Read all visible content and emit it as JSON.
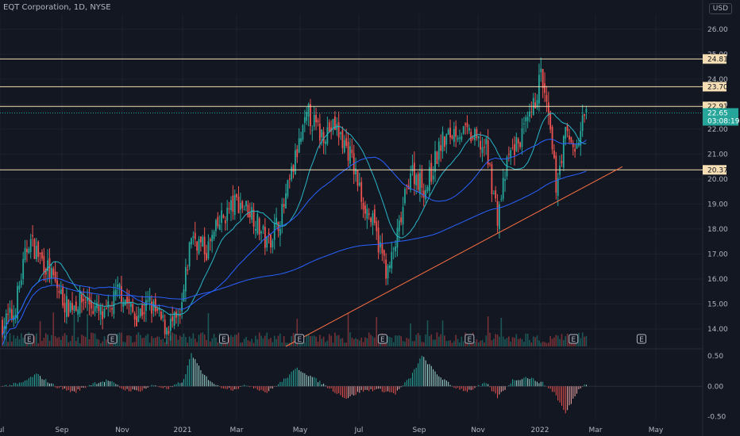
{
  "header": {
    "title": "EQT Corporation, 1D, NYSE",
    "currency": "USD"
  },
  "chart_data": {
    "type": "candlestick",
    "ylim": [
      13.3,
      26.6
    ],
    "price_ticks": [
      "14.00",
      "15.00",
      "16.00",
      "17.00",
      "18.00",
      "19.00",
      "20.00",
      "21.00",
      "22.00",
      "23.00",
      "24.00",
      "25.00",
      "26.00"
    ],
    "x_labels": [
      "Jul",
      "Sep",
      "Nov",
      "2021",
      "Mar",
      "May",
      "Jul",
      "Sep",
      "Nov",
      "2022",
      "Mar",
      "May"
    ],
    "horizontal_levels": [
      {
        "value": 24.81,
        "label": "24.81"
      },
      {
        "value": 23.7,
        "label": "23.70"
      },
      {
        "value": 22.91,
        "label": "22.91"
      },
      {
        "value": 20.37,
        "label": "20.37"
      }
    ],
    "last_price": {
      "value": 22.65,
      "label": "22.65",
      "countdown": "03:08:19"
    },
    "trendline": {
      "start": {
        "date": "2021-05",
        "price": 13.3
      },
      "end": {
        "date": "2022-03",
        "price": 20.5
      }
    },
    "close_anchors": [
      [
        0,
        14.2
      ],
      [
        6,
        14.6
      ],
      [
        14,
        17.6
      ],
      [
        24,
        16.4
      ],
      [
        34,
        14.9
      ],
      [
        44,
        15.2
      ],
      [
        54,
        14.4
      ],
      [
        62,
        15.6
      ],
      [
        70,
        14.5
      ],
      [
        78,
        15.0
      ],
      [
        86,
        14.1
      ],
      [
        94,
        14.3
      ],
      [
        100,
        17.8
      ],
      [
        108,
        17.1
      ],
      [
        116,
        18.4
      ],
      [
        124,
        19.1
      ],
      [
        132,
        18.7
      ],
      [
        140,
        17.4
      ],
      [
        148,
        18.6
      ],
      [
        156,
        21.1
      ],
      [
        162,
        22.6
      ],
      [
        168,
        21.8
      ],
      [
        176,
        22.1
      ],
      [
        184,
        21.0
      ],
      [
        190,
        19.3
      ],
      [
        196,
        18.2
      ],
      [
        204,
        16.2
      ],
      [
        210,
        18.0
      ],
      [
        216,
        20.4
      ],
      [
        224,
        19.6
      ],
      [
        232,
        21.4
      ],
      [
        240,
        22.0
      ],
      [
        248,
        21.7
      ],
      [
        256,
        21.2
      ],
      [
        262,
        18.5
      ],
      [
        268,
        20.9
      ],
      [
        274,
        21.6
      ],
      [
        280,
        22.5
      ],
      [
        285,
        24.2
      ],
      [
        289,
        22.3
      ],
      [
        293,
        19.8
      ],
      [
        298,
        21.8
      ],
      [
        304,
        21.2
      ],
      [
        308,
        22.6
      ]
    ],
    "oscillator": {
      "ticks": [
        "0.50",
        "0.00",
        "-0.50"
      ],
      "ylim": [
        -0.56,
        0.58
      ],
      "anchors": [
        [
          0,
          0.0
        ],
        [
          10,
          0.05
        ],
        [
          18,
          0.2
        ],
        [
          28,
          0.0
        ],
        [
          38,
          -0.1
        ],
        [
          48,
          0.05
        ],
        [
          56,
          0.1
        ],
        [
          64,
          -0.05
        ],
        [
          72,
          -0.08
        ],
        [
          80,
          0.02
        ],
        [
          88,
          -0.05
        ],
        [
          96,
          0.1
        ],
        [
          100,
          0.55
        ],
        [
          106,
          0.2
        ],
        [
          114,
          0.0
        ],
        [
          122,
          -0.05
        ],
        [
          130,
          0.02
        ],
        [
          140,
          -0.1
        ],
        [
          148,
          0.08
        ],
        [
          156,
          0.3
        ],
        [
          164,
          0.15
        ],
        [
          174,
          -0.05
        ],
        [
          182,
          -0.2
        ],
        [
          190,
          -0.08
        ],
        [
          198,
          -0.05
        ],
        [
          208,
          -0.12
        ],
        [
          216,
          0.15
        ],
        [
          222,
          0.5
        ],
        [
          230,
          0.2
        ],
        [
          238,
          0.0
        ],
        [
          246,
          -0.08
        ],
        [
          256,
          0.05
        ],
        [
          262,
          -0.18
        ],
        [
          270,
          0.1
        ],
        [
          278,
          0.15
        ],
        [
          286,
          0.05
        ],
        [
          292,
          -0.1
        ],
        [
          298,
          -0.45
        ],
        [
          304,
          -0.1
        ],
        [
          308,
          0.05
        ]
      ]
    },
    "earnings_markers": [
      {
        "t": 14,
        "label": "E"
      },
      {
        "t": 58,
        "label": "E"
      },
      {
        "t": 117,
        "label": "E"
      },
      {
        "t": 157,
        "label": "E"
      },
      {
        "t": 201,
        "label": "E"
      },
      {
        "t": 247,
        "label": "E"
      },
      {
        "t": 302,
        "label": "E"
      },
      {
        "t": 338,
        "label": "E"
      }
    ],
    "colors": {
      "up": "#26a69a",
      "down": "#ef5350",
      "ma1": "#2962ff",
      "ma2": "#29b6c8",
      "level": "#f5deb3",
      "trend": "#ff7043",
      "bg": "#131722",
      "grid": "#1e222d"
    }
  }
}
